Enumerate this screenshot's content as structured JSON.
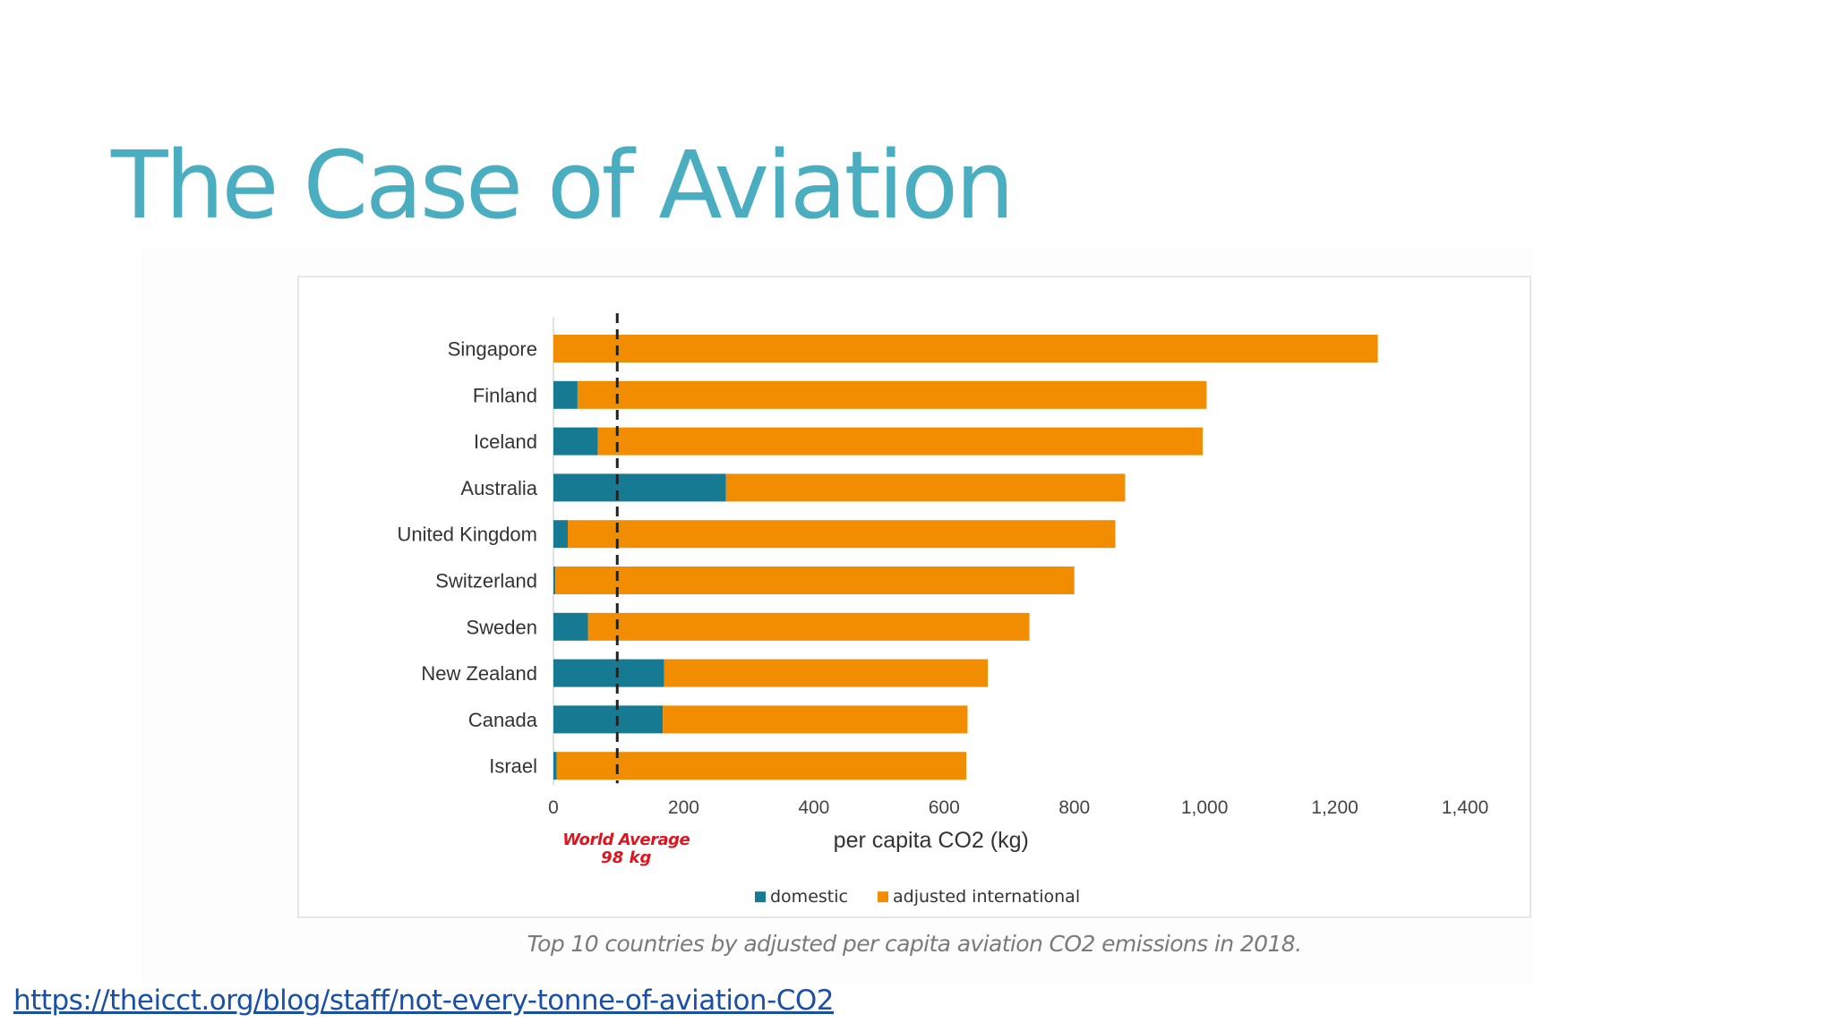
{
  "slide": {
    "title": "The Case of Aviation",
    "caption": "Top 10 countries by adjusted per capita aviation CO2 emissions in 2018.",
    "link": "https://theicct.org/blog/staff/not-every-tonne-of-aviation-CO2"
  },
  "colors": {
    "title": "#4aaec0",
    "domestic": "#157a92",
    "international": "#f28c00",
    "world_average_text": "#e0141e",
    "link": "#1a4fa8"
  },
  "chart_data": {
    "type": "bar",
    "orientation": "horizontal",
    "stacked": true,
    "categories": [
      "Singapore",
      "Finland",
      "Iceland",
      "Australia",
      "United Kingdom",
      "Switzerland",
      "Sweden",
      "New Zealand",
      "Canada",
      "Israel"
    ],
    "series": [
      {
        "name": "domestic",
        "values": [
          0,
          37,
          68,
          265,
          22,
          3,
          53,
          170,
          168,
          5
        ]
      },
      {
        "name": "adjusted international",
        "values": [
          1266,
          966,
          929,
          613,
          841,
          797,
          678,
          497,
          468,
          629
        ]
      }
    ],
    "xlabel": "per capita CO2 (kg)",
    "ylabel": "",
    "xlim": [
      0,
      1400
    ],
    "x_ticks": [
      0,
      200,
      400,
      600,
      800,
      1000,
      1200,
      1400
    ],
    "x_tick_labels": [
      "0",
      "200",
      "400",
      "600",
      "800",
      "1,000",
      "1,200",
      "1,400"
    ],
    "legend": [
      "domestic",
      "adjusted international"
    ],
    "legend_position": "bottom",
    "reference_line": {
      "value": 98,
      "label_line1": "World Average",
      "label_line2": "98 kg",
      "style": "dashed"
    }
  }
}
